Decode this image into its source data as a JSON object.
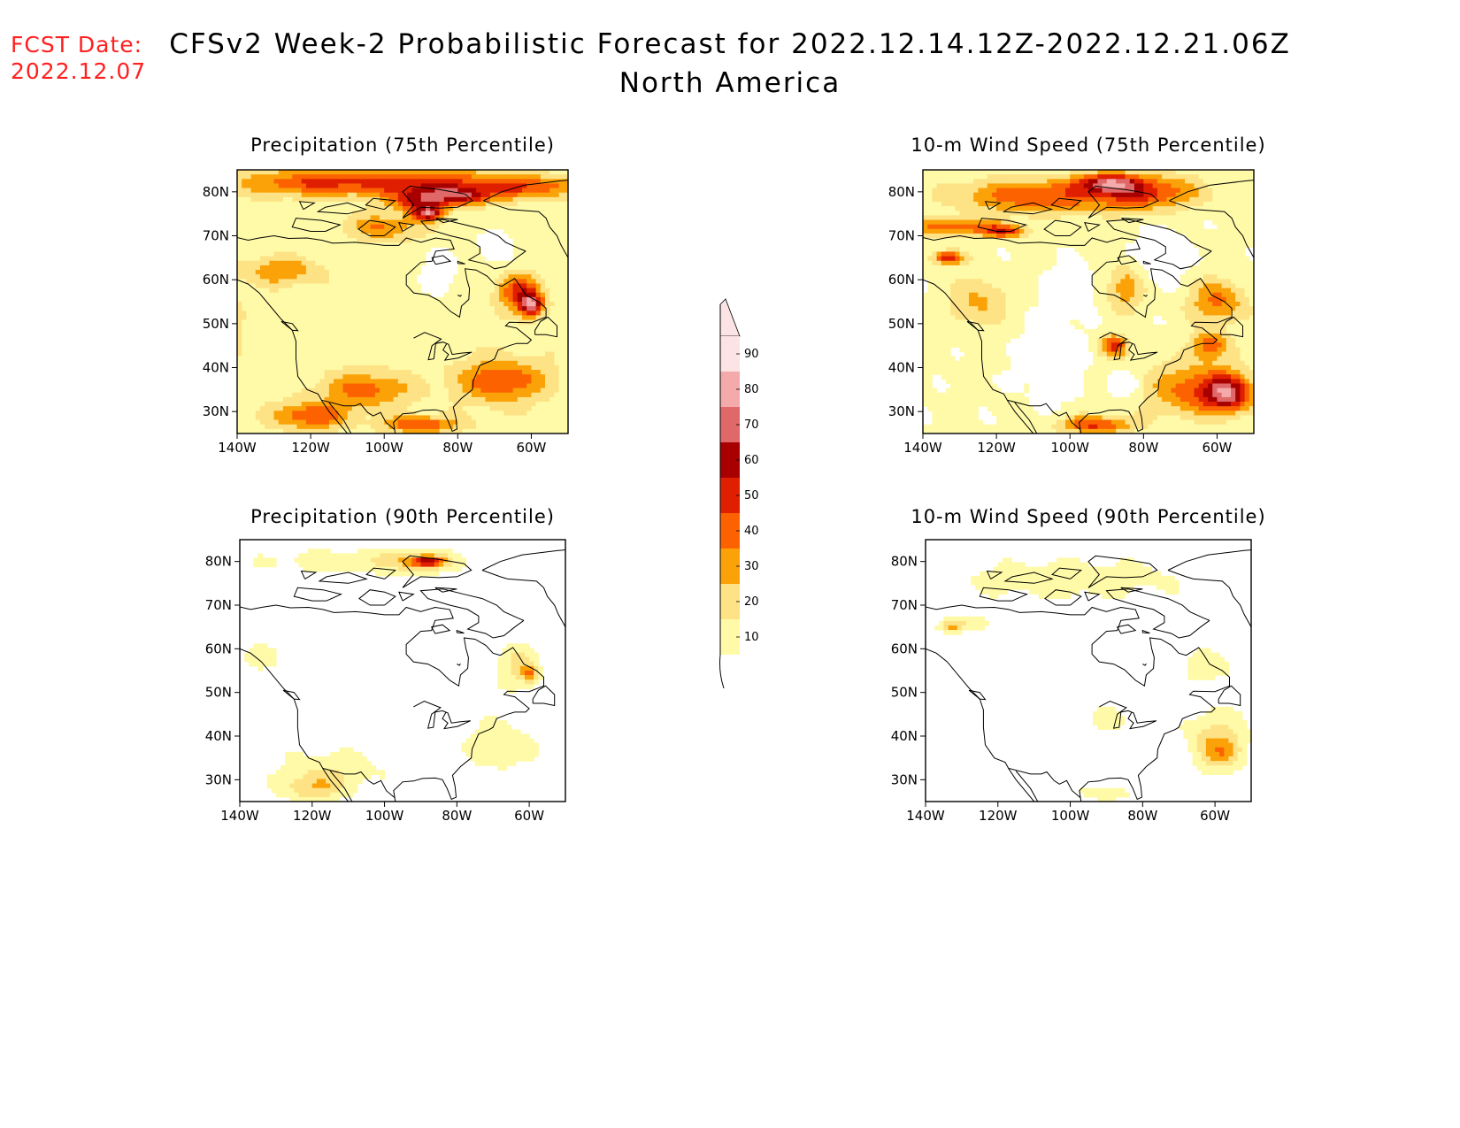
{
  "header": {
    "fcst_label": "FCST Date:",
    "fcst_date": "2022.12.07",
    "title": "CFSv2 Week-2 Probabilistic Forecast for 2022.12.14.12Z-2022.12.21.06Z",
    "subtitle": "North America"
  },
  "map_axes": {
    "lon_ticks": [
      "140W",
      "120W",
      "100W",
      "80W",
      "60W"
    ],
    "lat_ticks": [
      "80N",
      "70N",
      "60N",
      "50N",
      "40N",
      "30N"
    ],
    "lon_range": [
      -140,
      -50
    ],
    "lat_range": [
      25,
      85
    ]
  },
  "panels": [
    {
      "title": "Precipitation (75th Percentile)",
      "field": "precip75",
      "blobs": [
        [
          -118,
          82,
          22,
          3,
          35
        ],
        [
          -85,
          82,
          20,
          3,
          35
        ],
        [
          -60,
          81,
          12,
          2.5,
          30
        ],
        [
          -90,
          78,
          8,
          2.5,
          45
        ],
        [
          -88,
          75,
          4,
          1.5,
          50
        ],
        [
          -78,
          79,
          8,
          2,
          40
        ],
        [
          -128,
          62,
          10,
          3,
          25
        ],
        [
          -63,
          57,
          6,
          4,
          40
        ],
        [
          -60,
          54,
          3,
          2.5,
          55
        ],
        [
          -68,
          37,
          12,
          5,
          35
        ],
        [
          -105,
          35,
          12,
          4,
          30
        ],
        [
          -120,
          29,
          10,
          3,
          35
        ],
        [
          -90,
          27,
          10,
          2,
          35
        ],
        [
          -100,
          72,
          10,
          3,
          25
        ],
        [
          -145,
          50,
          5,
          8,
          25
        ]
      ],
      "base": 15,
      "clear": [
        [
          -70,
          68,
          5,
          4
        ],
        [
          -85,
          62,
          5,
          5
        ]
      ]
    },
    {
      "title": "10-m Wind Speed (75th Percentile)",
      "field": "wind75",
      "blobs": [
        [
          -110,
          79,
          22,
          4,
          35
        ],
        [
          -80,
          80,
          15,
          4,
          40
        ],
        [
          -90,
          82,
          8,
          2,
          45
        ],
        [
          -132,
          72,
          12,
          2,
          35
        ],
        [
          -133,
          65,
          4,
          1.5,
          50
        ],
        [
          -118,
          71,
          6,
          1.5,
          40
        ],
        [
          -60,
          55,
          8,
          5,
          30
        ],
        [
          -88,
          45,
          4,
          2.5,
          40
        ],
        [
          -62,
          45,
          5,
          3,
          35
        ],
        [
          -65,
          35,
          14,
          6,
          35
        ],
        [
          -57,
          34,
          6,
          4,
          45
        ],
        [
          -93,
          27,
          10,
          2,
          40
        ],
        [
          -125,
          55,
          8,
          6,
          20
        ],
        [
          -85,
          58,
          5,
          5,
          25
        ]
      ],
      "base": 12,
      "clear": [
        [
          -105,
          42,
          8,
          8
        ],
        [
          -100,
          58,
          6,
          5
        ],
        [
          -75,
          65,
          6,
          6
        ],
        [
          -85,
          36,
          5,
          3
        ]
      ]
    },
    {
      "title": "Precipitation (90th Percentile)",
      "field": "precip90",
      "blobs": [
        [
          -105,
          80,
          30,
          3,
          15
        ],
        [
          -90,
          80,
          8,
          2,
          25
        ],
        [
          -88,
          80,
          4,
          1,
          35
        ],
        [
          -63,
          56,
          6,
          5,
          20
        ],
        [
          -60,
          54,
          2,
          2,
          30
        ],
        [
          -68,
          38,
          10,
          6,
          15
        ],
        [
          -115,
          32,
          15,
          5,
          15
        ],
        [
          -120,
          28,
          8,
          3,
          22
        ],
        [
          -135,
          58,
          5,
          3,
          15
        ]
      ],
      "base": 3,
      "clear": []
    },
    {
      "title": "10-m Wind Speed (90th Percentile)",
      "field": "wind90",
      "blobs": [
        [
          -100,
          76,
          35,
          5,
          15
        ],
        [
          -133,
          65,
          3,
          1.2,
          25
        ],
        [
          -130,
          66,
          8,
          2,
          15
        ],
        [
          -60,
          40,
          9,
          7,
          20
        ],
        [
          -58,
          36,
          6,
          4,
          22
        ],
        [
          -90,
          44,
          5,
          3,
          15
        ],
        [
          -62,
          56,
          8,
          4,
          15
        ],
        [
          -90,
          27,
          8,
          2,
          15
        ]
      ],
      "base": 2,
      "clear": []
    }
  ],
  "colorbar": {
    "labels": [
      "10",
      "20",
      "30",
      "40",
      "50",
      "60",
      "70",
      "80",
      "90"
    ],
    "colors": [
      "#fffaa8",
      "#fde385",
      "#fba208",
      "#fc6300",
      "#e01e00",
      "#a80000",
      "#e06868",
      "#f4aaaa",
      "#fde4e4"
    ]
  }
}
